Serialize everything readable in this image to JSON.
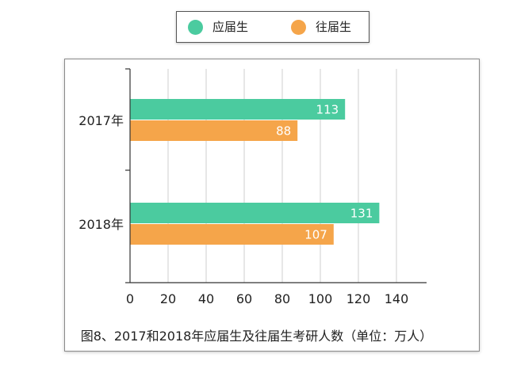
{
  "legend": {
    "items": [
      {
        "label": "应届生",
        "color": "#4bcb9f"
      },
      {
        "label": "往届生",
        "color": "#f5a54a"
      }
    ]
  },
  "caption": "图8、2017和2018年应届生及往届生考研人数（单位：万人）",
  "chart_data": {
    "type": "bar",
    "orientation": "horizontal",
    "categories": [
      "2017年",
      "2018年"
    ],
    "series": [
      {
        "name": "应届生",
        "values": [
          113,
          131
        ],
        "color": "#4bcb9f"
      },
      {
        "name": "往届生",
        "values": [
          88,
          107
        ],
        "color": "#f5a54a"
      }
    ],
    "xlim": [
      0,
      155
    ],
    "xticks": [
      0,
      20,
      40,
      60,
      80,
      100,
      120,
      140
    ],
    "grid": true,
    "legend_position": "top-center",
    "data_labels": true
  }
}
